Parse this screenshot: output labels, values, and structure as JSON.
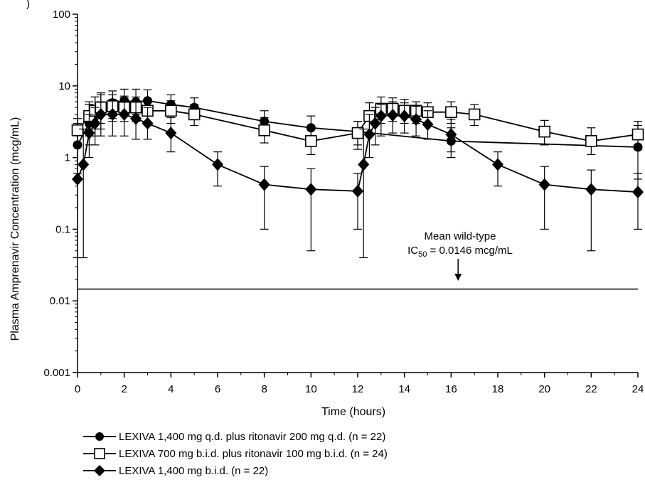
{
  "chart_data": {
    "type": "line",
    "title": "",
    "xlabel": "Time (hours)",
    "ylabel": "Plasma Amprenavir Concentration (mcg/mL)",
    "yscale": "log",
    "ylim": [
      0.001,
      100
    ],
    "xlim": [
      0,
      24
    ],
    "x_ticks": [
      0,
      2,
      4,
      6,
      8,
      10,
      12,
      14,
      16,
      18,
      20,
      22,
      24
    ],
    "y_ticks": [
      {
        "value": 0.001,
        "label": "0.001"
      },
      {
        "value": 0.01,
        "label": "0.01"
      },
      {
        "value": 0.1,
        "label": "0.1"
      },
      {
        "value": 1,
        "label": "1"
      },
      {
        "value": 10,
        "label": "10"
      },
      {
        "value": 100,
        "label": "100"
      }
    ],
    "grid": false,
    "legend_position": "bottom",
    "series": [
      {
        "name": "LEXIVA 1,400 mg q.d. plus ritonavir 200 mg q.d. (n = 22)",
        "marker": "filled-circle",
        "points": [
          {
            "x": 0,
            "y": 1.5,
            "lo": 0.6,
            "hi": 3.0
          },
          {
            "x": 0.5,
            "y": 3.0,
            "lo": 1.5,
            "hi": 5.5
          },
          {
            "x": 0.75,
            "y": 4.0,
            "lo": 2.0,
            "hi": 7.0
          },
          {
            "x": 1,
            "y": 4.8,
            "lo": 2.5,
            "hi": 8.0
          },
          {
            "x": 1.5,
            "y": 5.8,
            "lo": 3.5,
            "hi": 8.5
          },
          {
            "x": 2,
            "y": 6.2,
            "lo": 4.0,
            "hi": 9.0
          },
          {
            "x": 2.5,
            "y": 6.0,
            "lo": 4.0,
            "hi": 9.0
          },
          {
            "x": 3,
            "y": 6.2,
            "lo": 4.5,
            "hi": 8.8
          },
          {
            "x": 4,
            "y": 5.5,
            "lo": 4.0,
            "hi": 7.5
          },
          {
            "x": 5,
            "y": 5.0,
            "lo": 3.5,
            "hi": 6.8
          },
          {
            "x": 8,
            "y": 3.2,
            "lo": 2.2,
            "hi": 4.5
          },
          {
            "x": 10,
            "y": 2.6,
            "lo": 1.6,
            "hi": 3.8
          },
          {
            "x": 12,
            "y": 2.3,
            "lo": 1.5,
            "hi": 3.2
          },
          {
            "x": 16,
            "y": 1.7,
            "lo": 1.0,
            "hi": 2.6
          },
          {
            "x": 24,
            "y": 1.4,
            "lo": 0.5,
            "hi": 2.8
          }
        ]
      },
      {
        "name": "LEXIVA 700 mg b.i.d. plus ritonavir 100 mg b.i.d. (n = 24)",
        "marker": "open-square",
        "points": [
          {
            "x": 0,
            "y": 2.4,
            "lo": 1.5,
            "hi": 3.5
          },
          {
            "x": 0.5,
            "y": 3.8,
            "lo": 2.0,
            "hi": 6.0
          },
          {
            "x": 0.75,
            "y": 4.5,
            "lo": 2.5,
            "hi": 7.0
          },
          {
            "x": 1,
            "y": 5.0,
            "lo": 3.0,
            "hi": 7.5
          },
          {
            "x": 1.5,
            "y": 5.2,
            "lo": 3.2,
            "hi": 7.5
          },
          {
            "x": 2,
            "y": 5.0,
            "lo": 3.2,
            "hi": 7.2
          },
          {
            "x": 2.5,
            "y": 5.0,
            "lo": 3.2,
            "hi": 7.0
          },
          {
            "x": 3,
            "y": 4.5,
            "lo": 3.0,
            "hi": 6.5
          },
          {
            "x": 4,
            "y": 4.5,
            "lo": 3.0,
            "hi": 6.2
          },
          {
            "x": 5,
            "y": 4.0,
            "lo": 2.8,
            "hi": 5.5
          },
          {
            "x": 8,
            "y": 2.4,
            "lo": 1.6,
            "hi": 3.6
          },
          {
            "x": 10,
            "y": 1.7,
            "lo": 1.1,
            "hi": 2.6
          },
          {
            "x": 12,
            "y": 2.2,
            "lo": 1.3,
            "hi": 3.2
          },
          {
            "x": 12.5,
            "y": 3.8,
            "lo": 2.2,
            "hi": 5.8
          },
          {
            "x": 13,
            "y": 4.8,
            "lo": 3.0,
            "hi": 7.0
          },
          {
            "x": 13.5,
            "y": 4.8,
            "lo": 3.2,
            "hi": 6.8
          },
          {
            "x": 14,
            "y": 4.5,
            "lo": 3.0,
            "hi": 6.5
          },
          {
            "x": 14.5,
            "y": 4.5,
            "lo": 3.0,
            "hi": 6.0
          },
          {
            "x": 15,
            "y": 4.3,
            "lo": 3.0,
            "hi": 5.8
          },
          {
            "x": 16,
            "y": 4.3,
            "lo": 3.0,
            "hi": 6.0
          },
          {
            "x": 17,
            "y": 4.0,
            "lo": 2.8,
            "hi": 5.5
          },
          {
            "x": 20,
            "y": 2.3,
            "lo": 1.5,
            "hi": 3.3
          },
          {
            "x": 22,
            "y": 1.7,
            "lo": 1.1,
            "hi": 2.6
          },
          {
            "x": 24,
            "y": 2.1,
            "lo": 1.3,
            "hi": 3.2
          }
        ]
      },
      {
        "name": "LEXIVA 1,400 mg b.i.d. (n = 22)",
        "marker": "filled-diamond",
        "points": [
          {
            "x": 0,
            "y": 0.5,
            "lo": 0.04,
            "hi": 1.5
          },
          {
            "x": 0.25,
            "y": 0.8,
            "lo": 0.04,
            "hi": 2.5
          },
          {
            "x": 0.5,
            "y": 2.2,
            "lo": 1.0,
            "hi": 4.0
          },
          {
            "x": 0.75,
            "y": 3.0,
            "lo": 1.5,
            "hi": 5.0
          },
          {
            "x": 1,
            "y": 4.0,
            "lo": 2.0,
            "hi": 6.0
          },
          {
            "x": 1.5,
            "y": 4.0,
            "lo": 2.0,
            "hi": 6.5
          },
          {
            "x": 2,
            "y": 4.0,
            "lo": 2.0,
            "hi": 6.8
          },
          {
            "x": 2.5,
            "y": 3.5,
            "lo": 1.8,
            "hi": 6.0
          },
          {
            "x": 3,
            "y": 3.0,
            "lo": 1.8,
            "hi": 5.0
          },
          {
            "x": 4,
            "y": 2.2,
            "lo": 1.2,
            "hi": 3.6
          },
          {
            "x": 6,
            "y": 0.8,
            "lo": 0.4,
            "hi": 1.2
          },
          {
            "x": 8,
            "y": 0.42,
            "lo": 0.1,
            "hi": 0.75
          },
          {
            "x": 10,
            "y": 0.36,
            "lo": 0.05,
            "hi": 0.7
          },
          {
            "x": 12,
            "y": 0.34,
            "lo": 0.1,
            "hi": 0.6
          },
          {
            "x": 12.25,
            "y": 0.8,
            "lo": 0.04,
            "hi": 2.5
          },
          {
            "x": 12.5,
            "y": 2.1,
            "lo": 1.0,
            "hi": 4.0
          },
          {
            "x": 12.75,
            "y": 3.0,
            "lo": 1.5,
            "hi": 5.0
          },
          {
            "x": 13,
            "y": 3.8,
            "lo": 2.0,
            "hi": 5.5
          },
          {
            "x": 13.5,
            "y": 3.9,
            "lo": 2.2,
            "hi": 6.0
          },
          {
            "x": 14,
            "y": 3.8,
            "lo": 2.2,
            "hi": 5.8
          },
          {
            "x": 14.5,
            "y": 3.4,
            "lo": 2.0,
            "hi": 5.2
          },
          {
            "x": 15,
            "y": 2.9,
            "lo": 1.8,
            "hi": 4.5
          },
          {
            "x": 16,
            "y": 2.1,
            "lo": 1.2,
            "hi": 3.4
          },
          {
            "x": 18,
            "y": 0.8,
            "lo": 0.4,
            "hi": 1.2
          },
          {
            "x": 20,
            "y": 0.42,
            "lo": 0.1,
            "hi": 0.75
          },
          {
            "x": 22,
            "y": 0.36,
            "lo": 0.05,
            "hi": 0.67
          },
          {
            "x": 24,
            "y": 0.33,
            "lo": 0.1,
            "hi": 0.6
          }
        ]
      }
    ],
    "reference_line": {
      "y": 0.0146
    },
    "annotation": {
      "line1": "Mean wild-type",
      "line2_prefix": "IC",
      "line2_sub": "50",
      "line2_suffix": " = 0.0146 mcg/mL",
      "arrow_x": 16.3
    }
  }
}
